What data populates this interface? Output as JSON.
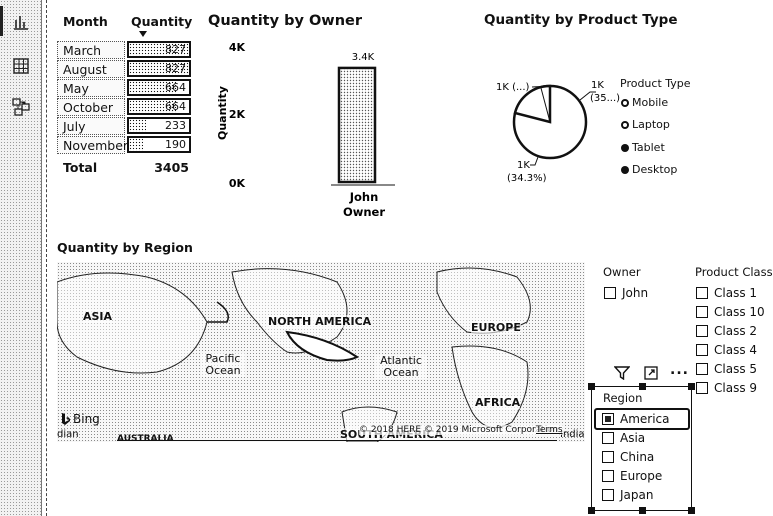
{
  "table": {
    "headers": [
      "Month",
      "Quantity"
    ],
    "rows": [
      {
        "month": "March",
        "quantity": "827",
        "fill": 1.0
      },
      {
        "month": "August",
        "quantity": "827",
        "fill": 1.0
      },
      {
        "month": "May",
        "quantity": "664",
        "fill": 0.8
      },
      {
        "month": "October",
        "quantity": "664",
        "fill": 0.8
      },
      {
        "month": "July",
        "quantity": "233",
        "fill": 0.28
      },
      {
        "month": "November",
        "quantity": "190",
        "fill": 0.23
      }
    ],
    "total_label": "Total",
    "total_value": "3405"
  },
  "owner_chart": {
    "title": "Quantity by Owner",
    "ylabel": "Quantity",
    "ticks": [
      "4K",
      "2K",
      "0K"
    ],
    "bar_label": "3.4K",
    "x_category": "John",
    "xlabel": "Owner"
  },
  "pie": {
    "title": "Quantity by Product Type",
    "labels": [
      "1K (...)",
      "1K",
      "(35...)",
      "1K",
      "(34.3%)"
    ],
    "legend_title": "Product Type",
    "legend": [
      "Mobile",
      "Laptop",
      "Tablet",
      "Desktop"
    ]
  },
  "map": {
    "title": "Quantity by Region",
    "labels": [
      "ASIA",
      "NORTH AMERICA",
      "EUROPE",
      "AFRICA",
      "SOUTH AMERICA"
    ],
    "oceans": [
      "Pacific Ocean",
      "Atlantic Ocean"
    ],
    "brand": "Bing",
    "copyright": "© 2018 HERE © 2019 Microsoft Corporation",
    "terms": "Terms",
    "edge_left": "dian",
    "edge_bottom": "AUSTRALIA",
    "edge_right": "India"
  },
  "owner_slicer": {
    "title": "Owner",
    "items": [
      "John"
    ]
  },
  "class_slicer": {
    "title": "Product Class",
    "items": [
      "Class 1",
      "Class 10",
      "Class 2",
      "Class 4",
      "Class 5",
      "Class 9"
    ]
  },
  "region_slicer": {
    "title": "Region",
    "items": [
      "America",
      "Asia",
      "China",
      "Europe",
      "Japan"
    ],
    "selected": "America"
  },
  "visual_header": {
    "more": "..."
  },
  "chart_data": {
    "type": "bar",
    "categories": [
      "John"
    ],
    "values": [
      3405
    ],
    "title": "Quantity by Owner",
    "xlabel": "Owner",
    "ylabel": "Quantity",
    "ylim": [
      0,
      4000
    ]
  }
}
